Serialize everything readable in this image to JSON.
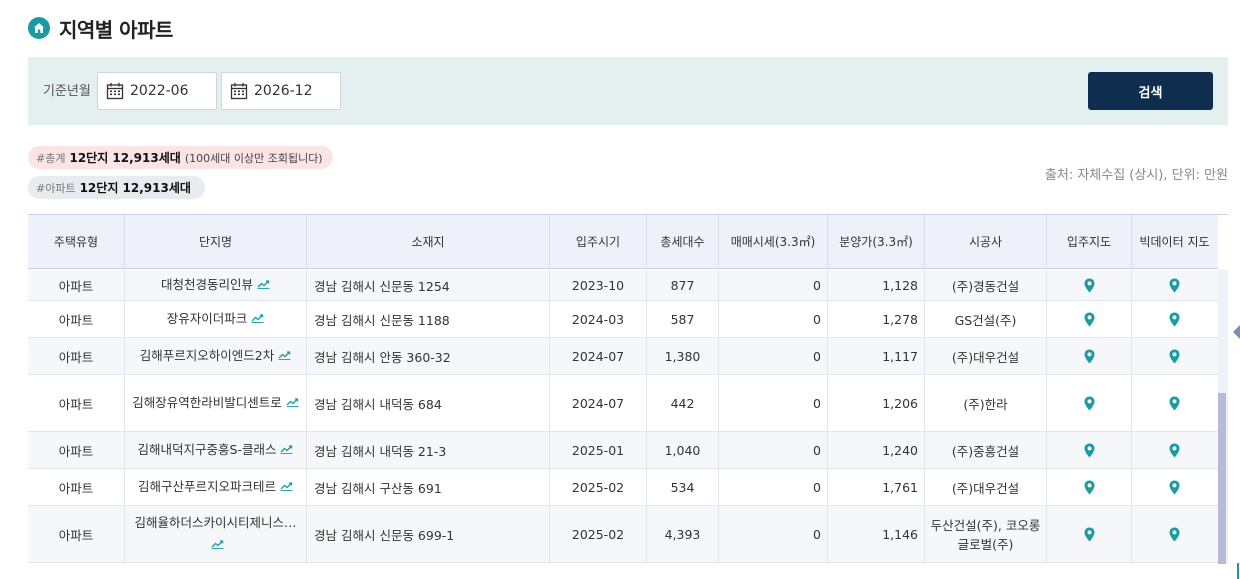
{
  "page": {
    "title": "지역별 아파트"
  },
  "filter": {
    "label": "기준년월",
    "start_month": "2022-06",
    "end_month": "2026-12",
    "search_label": "검색"
  },
  "summary": {
    "total_tag": "#총계",
    "total_value": "12단지 12,913세대",
    "total_note": "(100세대 이상만 조회됩니다)",
    "apt_tag": "#아파트",
    "apt_value": "12단지 12,913세대"
  },
  "source_text": "출처: 자체수집 (상시), 단위: 만원",
  "table": {
    "headers": [
      "주택유형",
      "단지명",
      "소재지",
      "입주시기",
      "총세대수",
      "매매시세(3.3㎡)",
      "분양가(3.3㎡)",
      "시공사",
      "입주지도",
      "빅데이터 지도"
    ],
    "rows": [
      {
        "type": "아파트",
        "name": "대청천경동리인뷰",
        "address": "경남 김해시 신문동 1254",
        "move_in": "2023-10",
        "households": "877",
        "trade_price": "0",
        "sale_price": "1,128",
        "builder": "(주)경동건설"
      },
      {
        "type": "아파트",
        "name": "장유자이더파크",
        "address": "경남 김해시 신문동 1188",
        "move_in": "2024-03",
        "households": "587",
        "trade_price": "0",
        "sale_price": "1,278",
        "builder": "GS건설(주)"
      },
      {
        "type": "아파트",
        "name": "김해푸르지오하이엔드2차",
        "address": "경남 김해시 안동 360-32",
        "move_in": "2024-07",
        "households": "1,380",
        "trade_price": "0",
        "sale_price": "1,117",
        "builder": "(주)대우건설"
      },
      {
        "type": "아파트",
        "name": "김해장유역한라비발디센트로",
        "address": "경남 김해시 내덕동 684",
        "move_in": "2024-07",
        "households": "442",
        "trade_price": "0",
        "sale_price": "1,206",
        "builder": "(주)한라"
      },
      {
        "type": "아파트",
        "name": "김해내덕지구중흥S-클래스",
        "address": "경남 김해시 내덕동 21-3",
        "move_in": "2025-01",
        "households": "1,040",
        "trade_price": "0",
        "sale_price": "1,240",
        "builder": "(주)중흥건설"
      },
      {
        "type": "아파트",
        "name": "김해구산푸르지오파크테르",
        "address": "경남 김해시 구산동 691",
        "move_in": "2025-02",
        "households": "534",
        "trade_price": "0",
        "sale_price": "1,761",
        "builder": "(주)대우건설"
      },
      {
        "type": "아파트",
        "name": "김해율하더스카이시티제니스…",
        "address": "경남 김해시 신문동 699-1",
        "move_in": "2025-02",
        "households": "4,393",
        "trade_price": "0",
        "sale_price": "1,146",
        "builder": "두산건설(주), 코오롱글로벌(주)"
      }
    ]
  },
  "icons": {
    "title": "home-icon",
    "calendar": "calendar-icon",
    "trend": "trend-chart-icon",
    "map_pin": "map-pin-icon"
  },
  "colors": {
    "accent": "#1a9ba3",
    "search_button": "#0f2d4f",
    "filter_background": "#e3f0ef",
    "header_background": "#eef0fa",
    "total_badge": "#fde4e4",
    "apt_badge": "#e8ebef"
  }
}
